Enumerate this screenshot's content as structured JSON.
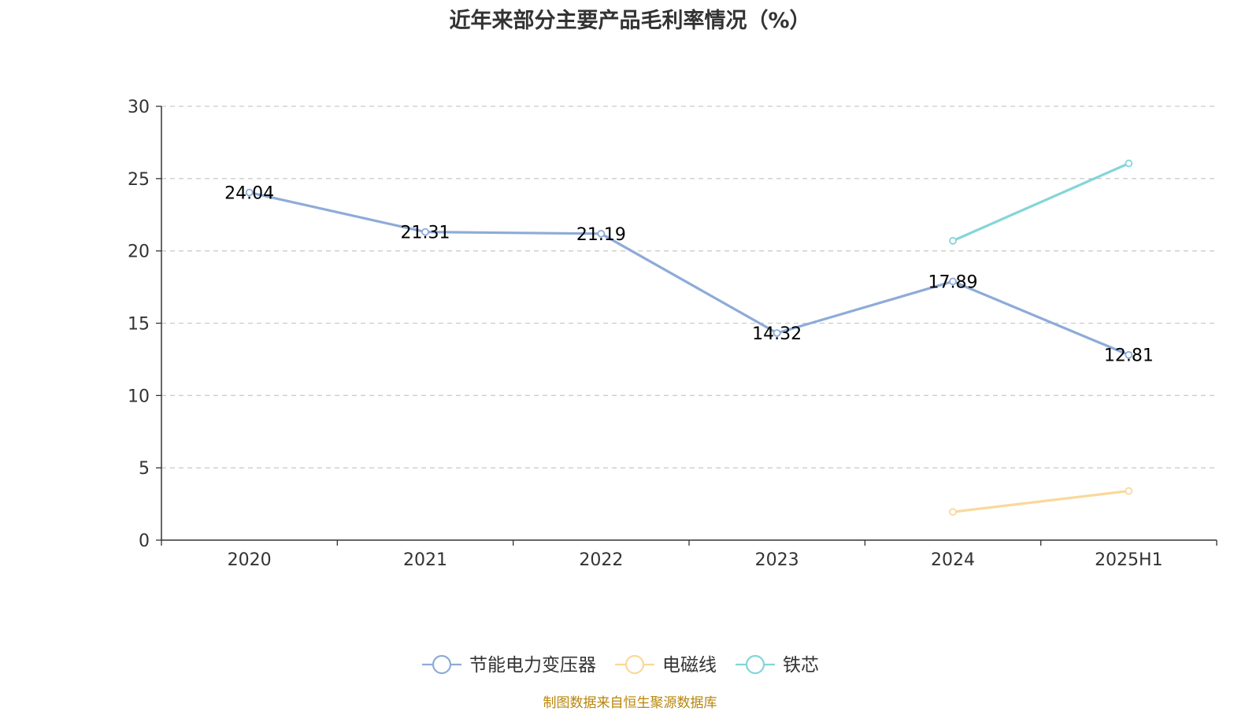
{
  "chart_data": {
    "type": "line",
    "title": "近年来部分主要产品毛利率情况（%）",
    "categories": [
      "2020",
      "2021",
      "2022",
      "2023",
      "2024",
      "2025H1"
    ],
    "ylim": [
      0,
      30
    ],
    "yticks": [
      "0",
      "5",
      "10",
      "15",
      "20",
      "25",
      "30"
    ],
    "grid": true,
    "legend_position": "bottom",
    "series": [
      {
        "name": "节能电力变压器",
        "color": "#8eabd8",
        "values": [
          24.04,
          21.31,
          21.19,
          14.32,
          17.89,
          12.81
        ],
        "show_labels": true
      },
      {
        "name": "电磁线",
        "color": "#fad89a",
        "values": [
          null,
          null,
          null,
          null,
          1.95,
          3.4
        ],
        "show_labels": false
      },
      {
        "name": "铁芯",
        "color": "#84d5d8",
        "values": [
          null,
          null,
          null,
          null,
          20.7,
          26.05
        ],
        "show_labels": false
      }
    ]
  },
  "source_note": "制图数据来自恒生聚源数据库"
}
